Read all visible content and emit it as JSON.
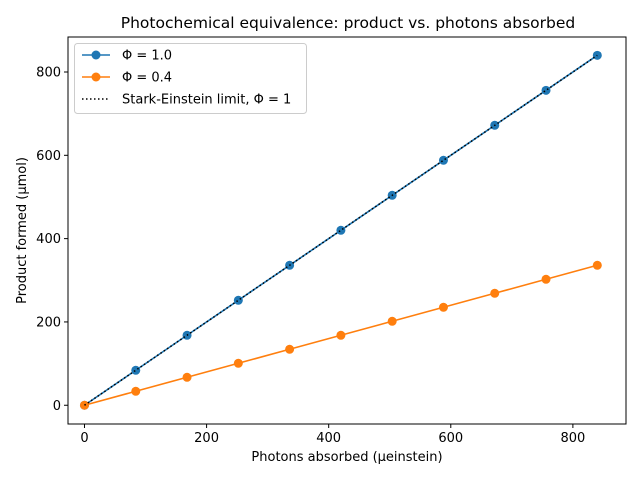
{
  "chart_data": {
    "type": "line",
    "title": "Photochemical equivalence: product vs. photons absorbed",
    "xlabel": "Photons absorbed (μeinstein)",
    "ylabel": "Product formed (μmol)",
    "xlim": [
      -27,
      887
    ],
    "ylim": [
      -45,
      884
    ],
    "xticks": [
      0,
      200,
      400,
      600,
      800
    ],
    "yticks": [
      0,
      200,
      400,
      600,
      800
    ],
    "xtick_labels": [
      "0",
      "200",
      "400",
      "600",
      "800"
    ],
    "ytick_labels": [
      "0",
      "200",
      "400",
      "600",
      "800"
    ],
    "grid": false,
    "legend_position": "top-left",
    "x": [
      0,
      84,
      168,
      252,
      336,
      420,
      504,
      588,
      672,
      756,
      840
    ],
    "series": [
      {
        "name": "Φ = 1.0",
        "color": "#1f77b4",
        "style": "solid",
        "marker": "circle",
        "values": [
          0,
          84,
          168,
          252,
          336,
          420,
          504,
          588,
          672,
          756,
          840
        ]
      },
      {
        "name": "Φ = 0.4",
        "color": "#ff7f0e",
        "style": "solid",
        "marker": "circle",
        "values": [
          0,
          33.6,
          67.2,
          100.8,
          134.4,
          168,
          201.6,
          235.2,
          268.8,
          302.4,
          336
        ]
      },
      {
        "name": "Stark-Einstein limit, Φ = 1",
        "color": "#000000",
        "style": "dotted",
        "marker": "none",
        "x": [
          0,
          840
        ],
        "values": [
          0,
          840
        ]
      }
    ]
  }
}
